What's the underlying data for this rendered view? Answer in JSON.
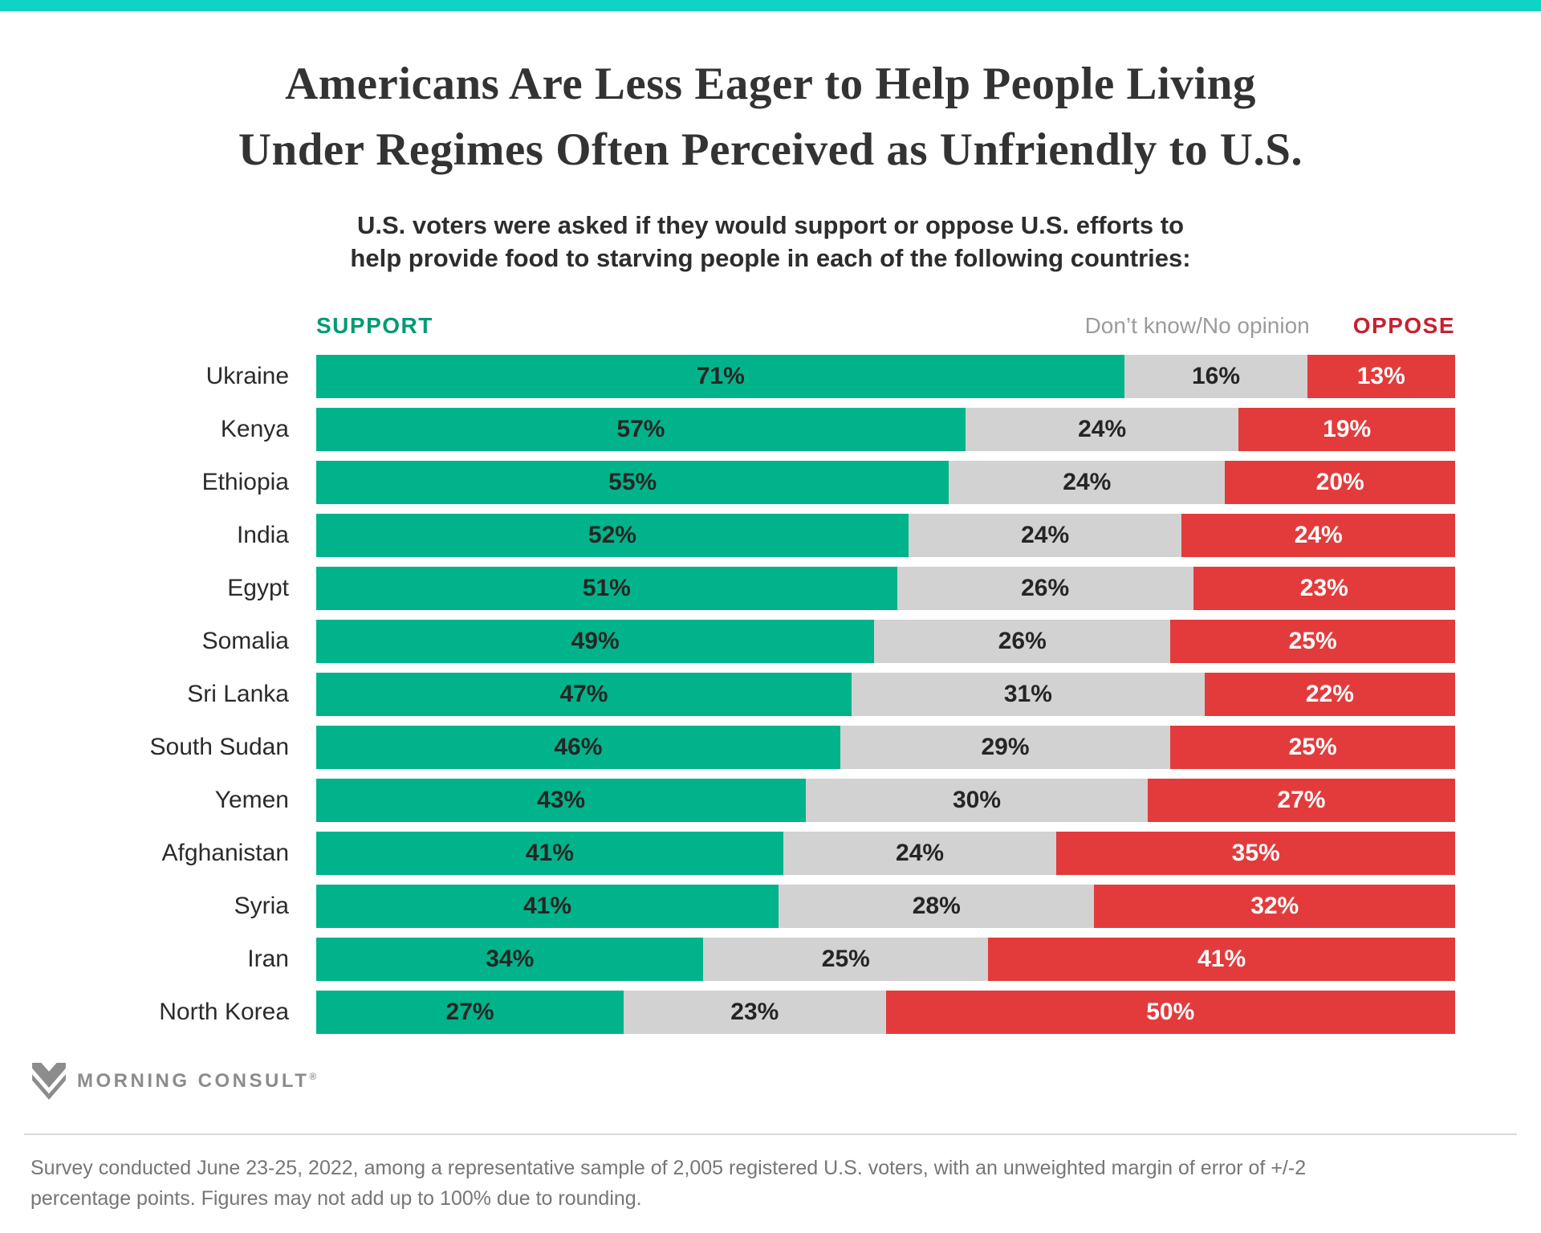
{
  "brand": {
    "top_bar_color": "#0fd3c5",
    "logo_text": "MORNING CONSULT",
    "logo_reg_mark": "®",
    "logo_color": "#8c8c8c"
  },
  "header": {
    "title_line1": "Americans Are Less Eager to Help People Living",
    "title_line2": "Under Regimes Often Perceived as Unfriendly to U.S.",
    "subtitle_line1": "U.S. voters were asked if they would support or oppose U.S. efforts to",
    "subtitle_line2": "help provide food to starving people in each of the following countries:"
  },
  "legend": {
    "support_label": "SUPPORT",
    "support_color": "#009a74",
    "dont_know_label": "Don’t know/No opinion",
    "dont_know_color": "#9b9b9b",
    "oppose_label": "OPPOSE",
    "oppose_color": "#c6212f"
  },
  "chart_data": {
    "type": "bar",
    "stacked": true,
    "orientation": "horizontal",
    "unit": "%",
    "x_range": [
      0,
      100
    ],
    "grid": false,
    "legend_position": "top",
    "categories": [
      "Ukraine",
      "Kenya",
      "Ethiopia",
      "India",
      "Egypt",
      "Somalia",
      "Sri Lanka",
      "South Sudan",
      "Yemen",
      "Afghanistan",
      "Syria",
      "Iran",
      "North Korea"
    ],
    "series": [
      {
        "name": "Support",
        "color": "#00b38a",
        "label_color": "#252525",
        "values": [
          71,
          57,
          55,
          52,
          51,
          49,
          47,
          46,
          43,
          41,
          41,
          34,
          27
        ]
      },
      {
        "name": "Don’t know/No opinion",
        "color": "#d2d2d2",
        "label_color": "#252525",
        "values": [
          16,
          24,
          24,
          24,
          26,
          26,
          31,
          29,
          30,
          24,
          28,
          25,
          23
        ]
      },
      {
        "name": "Oppose",
        "color": "#e33b3c",
        "label_color": "#ffffff",
        "values": [
          13,
          19,
          20,
          24,
          23,
          25,
          22,
          25,
          27,
          35,
          32,
          41,
          50
        ]
      }
    ]
  },
  "footer": {
    "line1": "Survey conducted June 23-25, 2022, among a representative sample of 2,005 registered U.S. voters, with an unweighted margin of error of +/-2",
    "line2": "percentage points. Figures may not add up to 100% due to rounding."
  }
}
